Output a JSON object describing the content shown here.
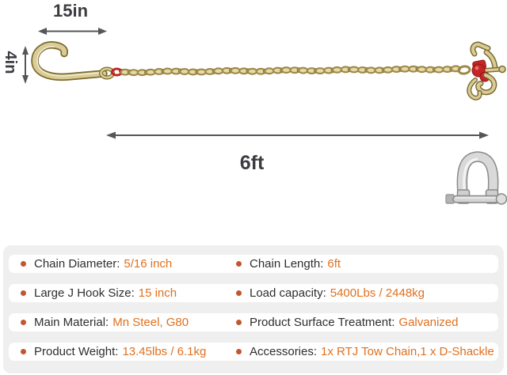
{
  "diagram": {
    "hook_length_label": "15in",
    "hook_height_label": "4in",
    "chain_length_label": "6ft",
    "colors": {
      "dimension": "#55555a",
      "hook_gold": "#d9cc96",
      "hook_outline": "#7b6b30",
      "chain_gold": "#9d8848",
      "connector_red": "#c32424",
      "shackle_silver": "#d9d9d9"
    },
    "icons": [
      "j-hook",
      "tow-chain",
      "rtj-hook-cluster",
      "d-shackle"
    ]
  },
  "specs": {
    "rows": [
      {
        "left_label": "Chain Diameter:",
        "left_value": "5/16 inch",
        "right_label": "Chain Length:",
        "right_value": "6ft"
      },
      {
        "left_label": "Large J Hook Size:",
        "left_value": "15 inch",
        "right_label": "Load capacity:",
        "right_value": "5400Lbs / 2448kg"
      },
      {
        "left_label": "Main Material:",
        "left_value": "Mn Steel, G80",
        "right_label": "Product Surface Treatment:",
        "right_value": "Galvanized"
      },
      {
        "left_label": "Product Weight:",
        "left_value": "13.45lbs / 6.1kg",
        "right_label": "Accessories:",
        "right_value": "1x RTJ Tow Chain,1 x D-Shackle"
      }
    ]
  }
}
